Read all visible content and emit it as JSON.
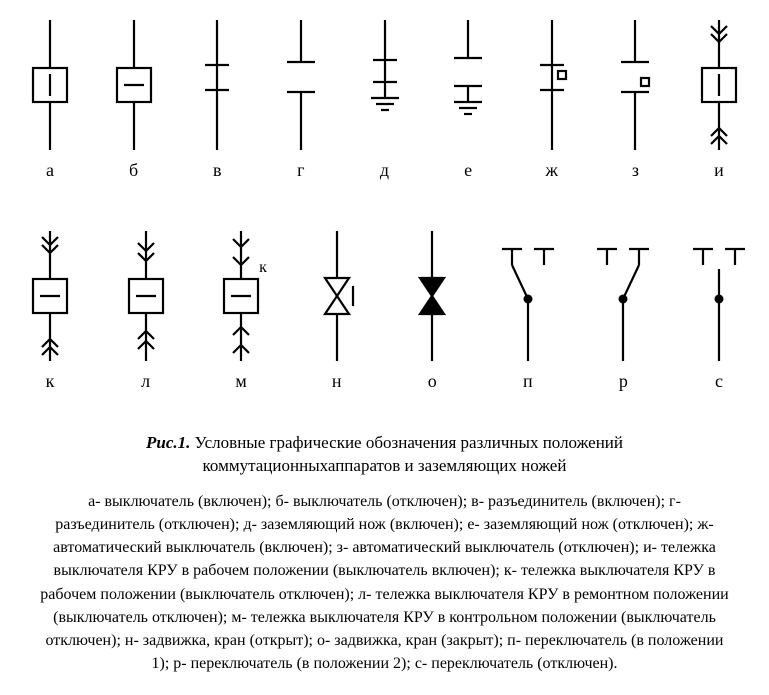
{
  "stroke": "#000000",
  "stroke_width": 2.2,
  "bg": "#ffffff",
  "symbol_w": 60,
  "symbol_h": 130,
  "row1": [
    {
      "key": "a",
      "type": "breaker_on",
      "label": "а"
    },
    {
      "key": "b",
      "type": "breaker_off",
      "label": "б"
    },
    {
      "key": "v",
      "type": "disconnect_on",
      "label": "в"
    },
    {
      "key": "g",
      "type": "disconnect_off",
      "label": "г"
    },
    {
      "key": "d",
      "type": "ground_closed",
      "label": "д"
    },
    {
      "key": "e",
      "type": "ground_open",
      "label": "е"
    },
    {
      "key": "zh",
      "type": "auto_on",
      "label": "ж"
    },
    {
      "key": "z",
      "type": "auto_off",
      "label": "з"
    },
    {
      "key": "i",
      "type": "truck_work_on",
      "label": "и"
    }
  ],
  "row2": [
    {
      "key": "k",
      "type": "truck_work_off",
      "label": "к"
    },
    {
      "key": "l",
      "type": "truck_repair",
      "label": "л"
    },
    {
      "key": "m",
      "type": "truck_control",
      "label": "м",
      "side_label": "к"
    },
    {
      "key": "n",
      "type": "valve_open",
      "label": "н"
    },
    {
      "key": "o",
      "type": "valve_closed",
      "label": "о"
    },
    {
      "key": "p",
      "type": "switch_pos1",
      "label": "п"
    },
    {
      "key": "r",
      "type": "switch_pos2",
      "label": "р"
    },
    {
      "key": "s",
      "type": "switch_off",
      "label": "с"
    }
  ],
  "caption_title": "Рис.1.",
  "caption_text": "Условные графические обозначения различных положений коммутационныхаппаратов и заземляющих ножей",
  "legend": "а- выключатель (включен); б- выключатель (отключен); в- разъединитель (включен); г- разъединитель (отключен); д- заземляющий нож (включен); е- заземляющий нож (отключен); ж- автоматический выключатель (включен); з- автоматический выключатель (отключен); и- тележка выключателя КРУ в рабочем положении (выключатель включен); к- тележка выключателя КРУ в рабочем положении (выключатель отключен); л- тележка выключателя КРУ в ремонтном положении (выключатель отключен); м- тележка выключателя КРУ в контрольном положении (выключатель отключен); н- задвижка, кран (открыт); о- задвижка, кран (закрыт); п- переключатель (в положении 1); р- переключатель (в положении 2); с- переключатель (отключен)."
}
